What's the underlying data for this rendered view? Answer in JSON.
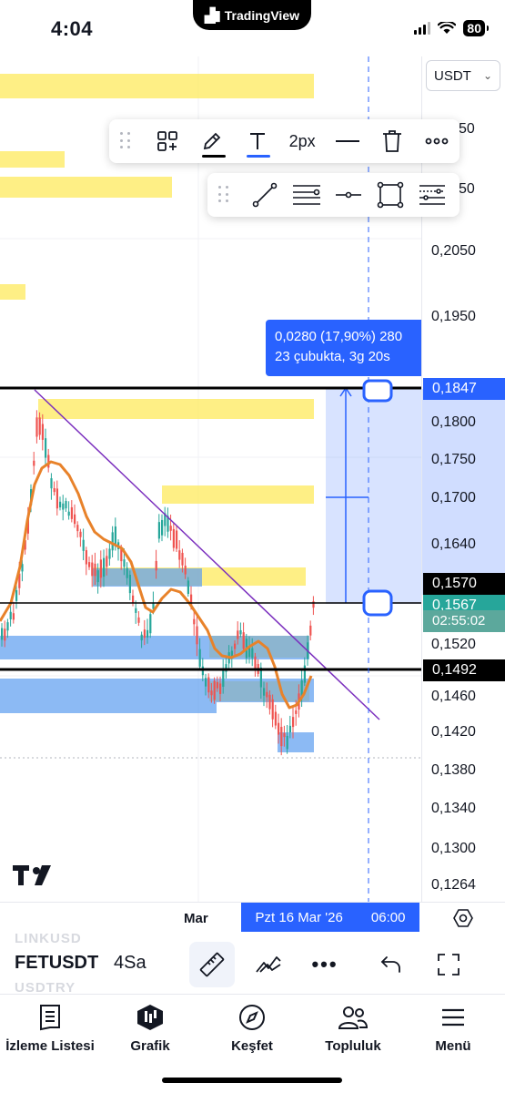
{
  "status_bar": {
    "time": "4:04",
    "app_pill": "TradingView",
    "battery": "80"
  },
  "price_axis": {
    "currency": "USDT",
    "labels": [
      "50",
      "50",
      "0,2050",
      "0,1950",
      "0,1800",
      "0,1750",
      "0,1700",
      "0,1640",
      "0,1520",
      "0,1460",
      "0,1420",
      "0,1380",
      "0,1340",
      "0,1300",
      "0,1264"
    ],
    "tags": {
      "top_line": "0,1847",
      "mid_line": "0,1570",
      "current_price": "0,1567",
      "countdown": "02:55:02",
      "low_line": "0,1492"
    }
  },
  "drawing_toolbar": {
    "width_label": "2px"
  },
  "measure_tooltip": {
    "line1": "0,0280 (17,90%) 280",
    "line2": "23 çubukta, 3g 20s"
  },
  "time_axis": {
    "month_label": "Mar",
    "cursor_date": "Pzt 16 Mar '26",
    "cursor_time": "06:00"
  },
  "symbol_bar": {
    "ghost_above": "LINKUSD",
    "symbol": "FETUSDT",
    "ghost_below": "USDTRY",
    "interval": "4Sa",
    "more": "•••"
  },
  "bottom_nav": [
    {
      "label": "İzleme Listesi",
      "icon": "watchlist-icon"
    },
    {
      "label": "Grafik",
      "icon": "chart-icon"
    },
    {
      "label": "Keşfet",
      "icon": "compass-icon"
    },
    {
      "label": "Topluluk",
      "icon": "community-icon"
    },
    {
      "label": "Menü",
      "icon": "menu-icon"
    }
  ],
  "colors": {
    "accent": "#2962ff",
    "zone_yellow": "#fde95c",
    "zone_blue": "#5b9cf0",
    "ema": "#e8822a",
    "trendline": "#7b2fbe",
    "candle_up": "#26a69a",
    "candle_down": "#ef5350"
  }
}
